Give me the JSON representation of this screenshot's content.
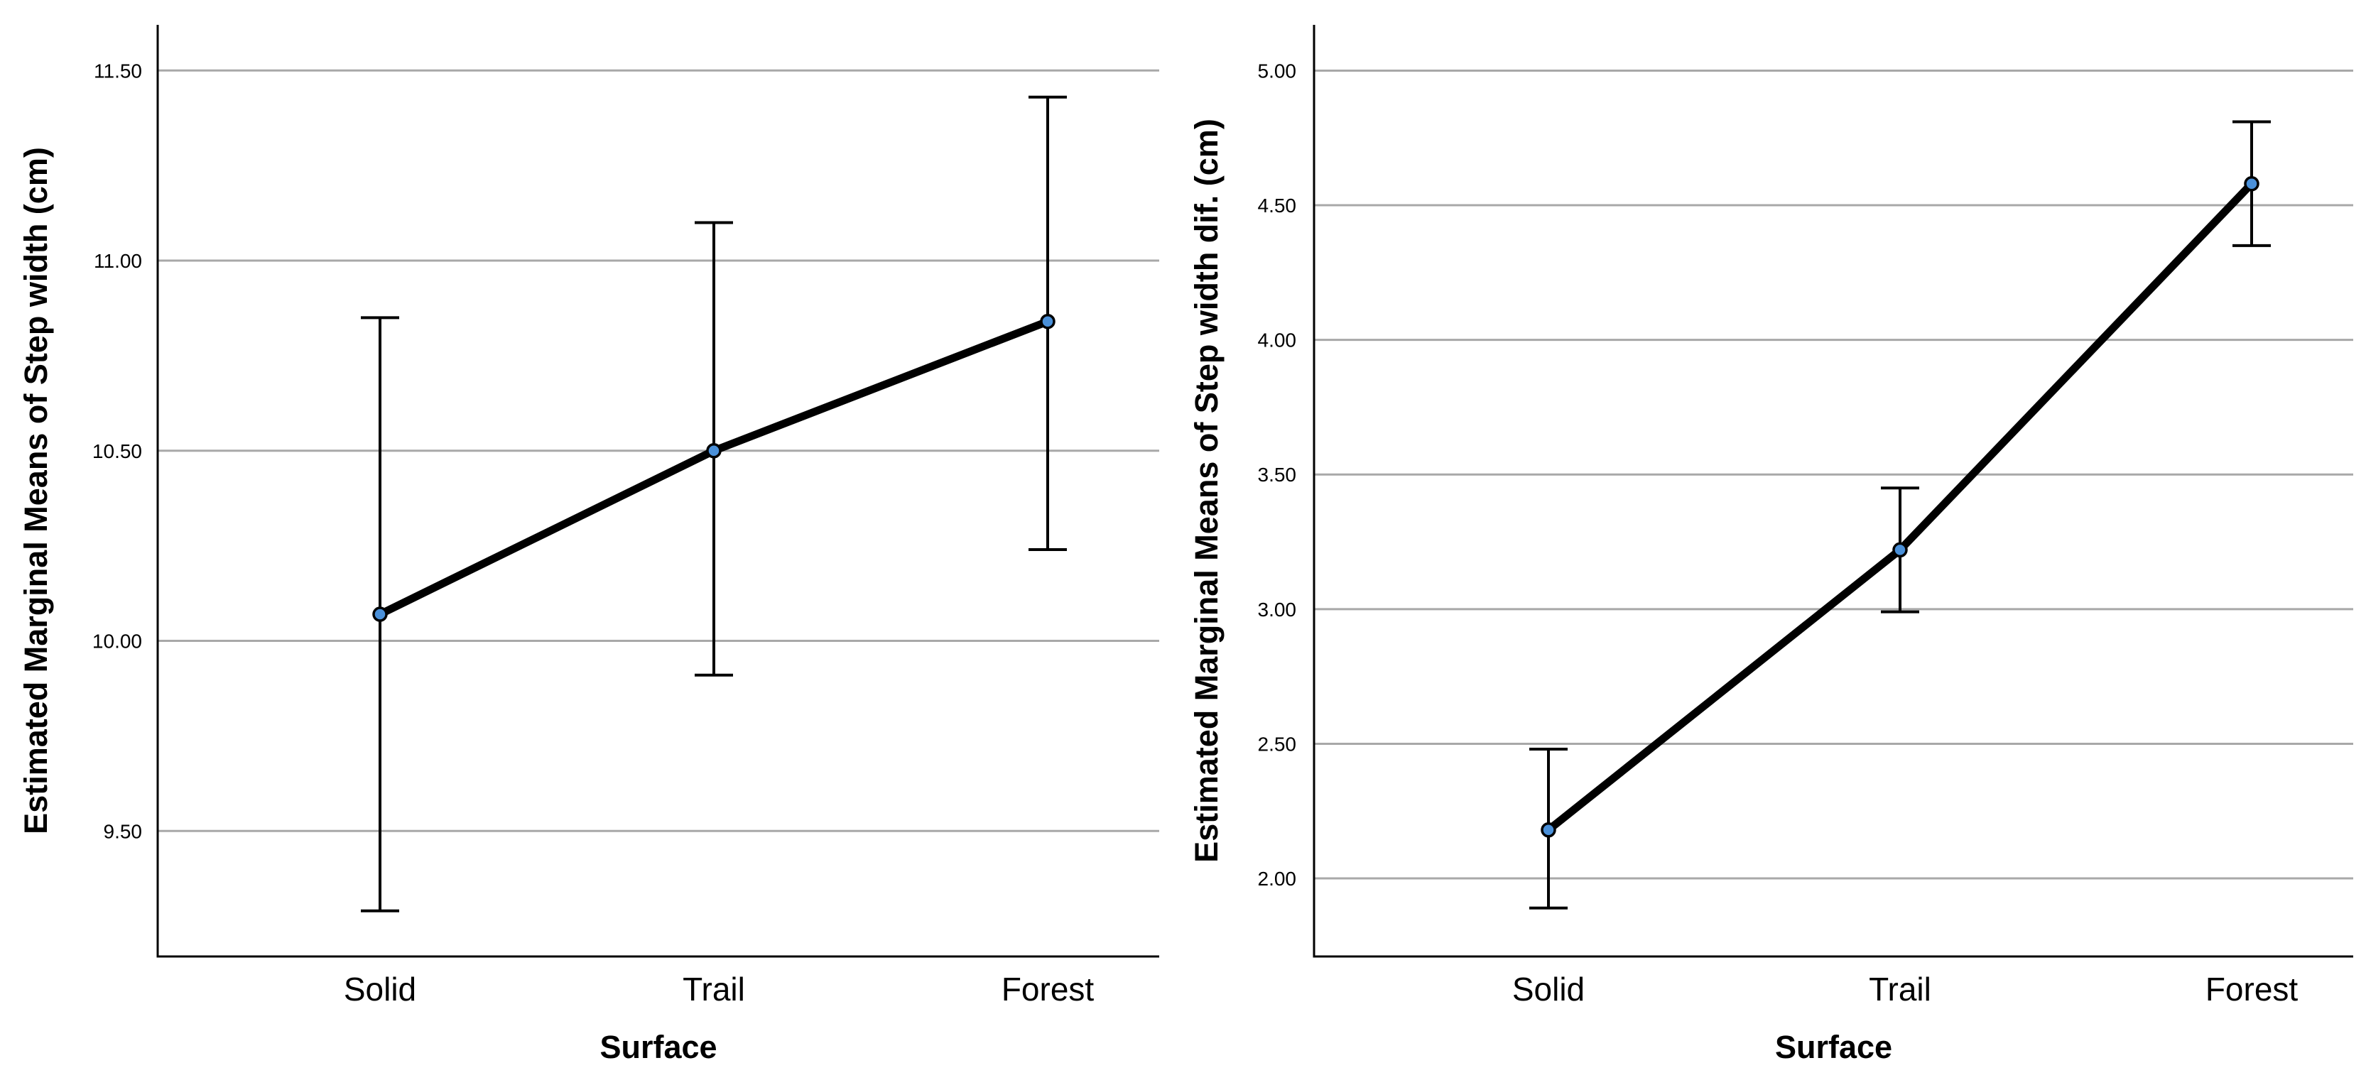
{
  "colors": {
    "marker_fill": "#4a90d9",
    "line": "#000000",
    "grid": "#a8a8a8",
    "background": "#ffffff"
  },
  "chart_data": [
    {
      "type": "line",
      "title": "",
      "xlabel": "Surface",
      "ylabel": "Estimated Marginal Means of Step width (cm)",
      "categories": [
        "Solid",
        "Trail",
        "Forest"
      ],
      "series": [
        {
          "values": [
            10.07,
            10.5,
            10.84
          ],
          "ci_lower": [
            9.29,
            9.91,
            10.24
          ],
          "ci_upper": [
            10.85,
            11.1,
            11.43
          ]
        }
      ],
      "ylim": [
        9.17,
        11.62
      ],
      "yticks": [
        9.5,
        10.0,
        10.5,
        11.0,
        11.5
      ],
      "ytick_labels": [
        "9.50",
        "10.00",
        "10.50",
        "11.00",
        "11.50"
      ],
      "grid": true,
      "error_bars": true
    },
    {
      "type": "line",
      "title": "",
      "xlabel": "Surface",
      "ylabel": "Estimated Marginal Means of Step width dif. (cm)",
      "categories": [
        "Solid",
        "Trail",
        "Forest"
      ],
      "series": [
        {
          "values": [
            2.18,
            3.22,
            4.58
          ],
          "ci_lower": [
            1.89,
            2.99,
            4.35
          ],
          "ci_upper": [
            2.48,
            3.45,
            4.81
          ]
        }
      ],
      "ylim": [
        1.71,
        5.17
      ],
      "yticks": [
        2.0,
        2.5,
        3.0,
        3.5,
        4.0,
        4.5,
        5.0
      ],
      "ytick_labels": [
        "2.00",
        "2.50",
        "3.00",
        "3.50",
        "4.00",
        "4.50",
        "5.00"
      ],
      "grid": true,
      "error_bars": true
    }
  ]
}
